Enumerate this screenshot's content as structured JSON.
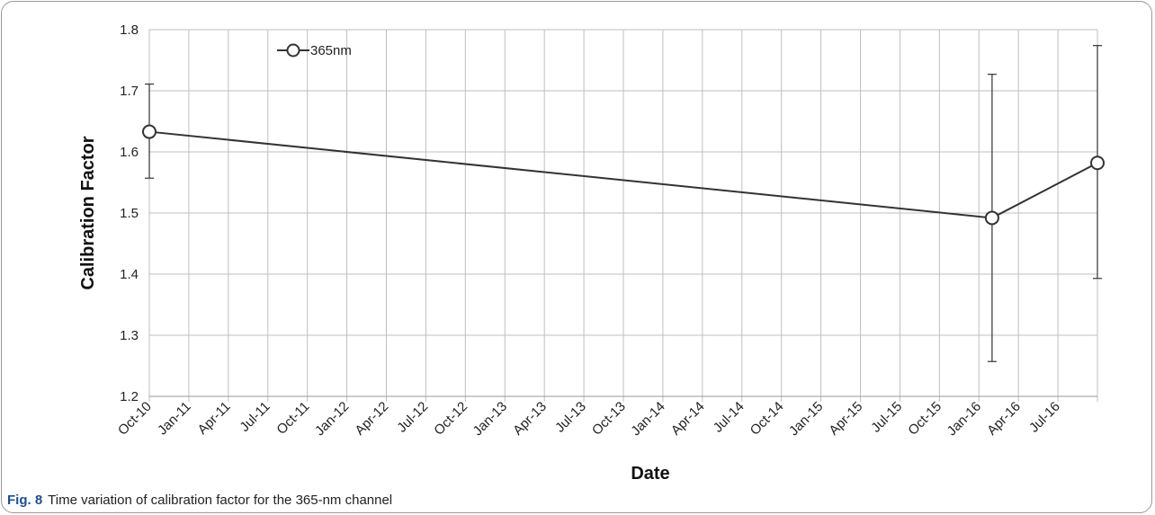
{
  "chart_data": {
    "type": "line",
    "xlabel": "Date",
    "ylabel": "Calibration Factor",
    "ylim": [
      1.2,
      1.8
    ],
    "yticks": [
      "1.2",
      "1.3",
      "1.4",
      "1.5",
      "1.6",
      "1.7",
      "1.8"
    ],
    "xlim": [
      "2010-10",
      "2016-10"
    ],
    "xticks": [
      "Oct-10",
      "Jan-11",
      "Apr-11",
      "Jul-11",
      "Oct-11",
      "Jan-12",
      "Apr-12",
      "Jul-12",
      "Oct-12",
      "Jan-13",
      "Apr-13",
      "Jul-13",
      "Oct-13",
      "Jan-14",
      "Apr-14",
      "Jul-14",
      "Oct-14",
      "Jan-15",
      "Apr-15",
      "Jul-15",
      "Oct-15",
      "Jan-16",
      "Apr-16",
      "Jul-16"
    ],
    "grid": true,
    "legend_position": "top-left",
    "series": [
      {
        "name": "365nm",
        "color": "#333333",
        "marker": "open-circle",
        "points": [
          {
            "x": "2010-10",
            "y": 1.633,
            "err_low": 1.557,
            "err_high": 1.711
          },
          {
            "x": "2016-02",
            "y": 1.492,
            "err_low": 1.257,
            "err_high": 1.727
          },
          {
            "x": "2016-10",
            "y": 1.582,
            "err_low": 1.393,
            "err_high": 1.774
          }
        ]
      }
    ]
  },
  "caption": {
    "label": "Fig. 8",
    "text": "Time variation of calibration factor for the 365-nm channel"
  }
}
